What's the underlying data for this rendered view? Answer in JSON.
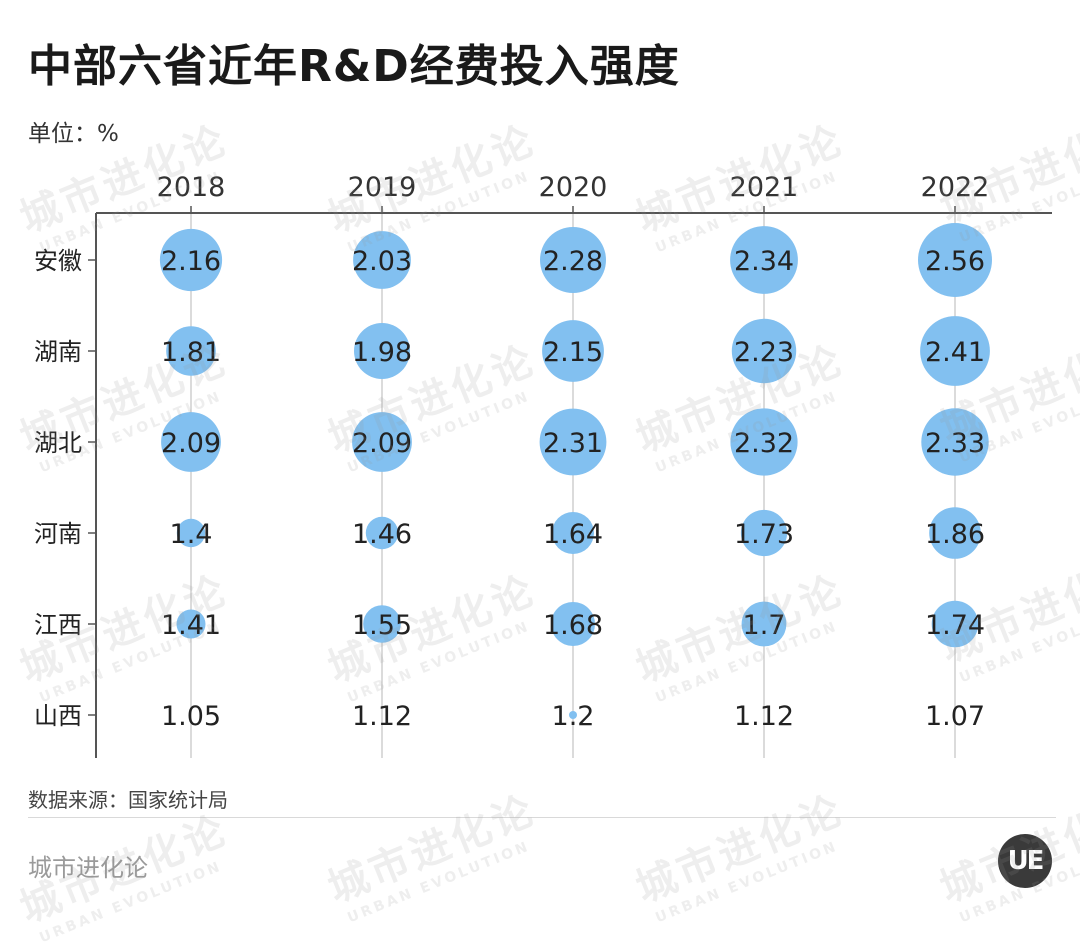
{
  "title": "中部六省近年R&D经费投入强度",
  "unit_label": "单位：%",
  "source_label": "数据来源：国家统计局",
  "brand": "城市进化论",
  "watermark": {
    "cn": "城市进化论",
    "en": "URBAN EVOLUTION"
  },
  "logo_text": "UE",
  "colors": {
    "bubble": "#82c0f0",
    "axis": "#555555",
    "guide": "#cfcfcf"
  },
  "chart_data": {
    "type": "bubble-matrix",
    "title": "中部六省近年R&D经费投入强度",
    "unit": "%",
    "columns": [
      "2018",
      "2019",
      "2020",
      "2021",
      "2022"
    ],
    "rows": [
      {
        "name": "安徽",
        "values": [
          2.16,
          2.03,
          2.28,
          2.34,
          2.56
        ]
      },
      {
        "name": "湖南",
        "values": [
          1.81,
          1.98,
          2.15,
          2.23,
          2.41
        ]
      },
      {
        "name": "湖北",
        "values": [
          2.09,
          2.09,
          2.31,
          2.32,
          2.33
        ]
      },
      {
        "name": "河南",
        "values": [
          1.4,
          1.46,
          1.64,
          1.73,
          1.86
        ]
      },
      {
        "name": "江西",
        "values": [
          1.41,
          1.55,
          1.68,
          1.7,
          1.74
        ]
      },
      {
        "name": "山西",
        "values": [
          1.05,
          1.12,
          1.2,
          1.12,
          1.07
        ]
      }
    ],
    "labels": [
      [
        "2.16",
        "2.03",
        "2.28",
        "2.34",
        "2.56"
      ],
      [
        "1.81",
        "1.98",
        "2.15",
        "2.23",
        "2.41"
      ],
      [
        "2.09",
        "2.09",
        "2.31",
        "2.32",
        "2.33"
      ],
      [
        "1.4",
        "1.46",
        "1.64",
        "1.73",
        "1.86"
      ],
      [
        "1.41",
        "1.55",
        "1.68",
        "1.7",
        "1.74"
      ],
      [
        "1.05",
        "1.12",
        "1.2",
        "1.12",
        "1.07"
      ]
    ],
    "size_encoding": "bubble area proportional to value above baseline",
    "grid": true,
    "legend": "none"
  }
}
